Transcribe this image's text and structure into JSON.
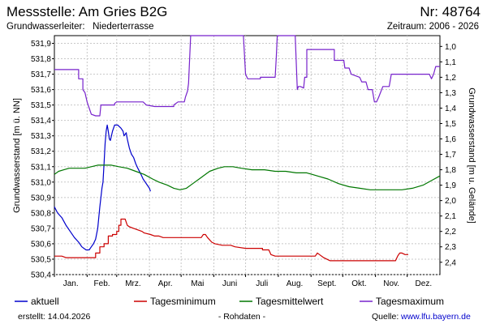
{
  "header": {
    "title": "Messstelle: Am Gries B2G",
    "nr": "Nr: 48764",
    "aquifer_label": "Grundwasserleiter:",
    "aquifer_value": "Niederterrasse",
    "period": "Zeitraum: 2006 - 2026"
  },
  "footer": {
    "created": "erstellt:  14.04.2026",
    "raw": "- Rohdaten -",
    "source_label": "Quelle:",
    "source_link": "www.lfu.bayern.de"
  },
  "chart_data": {
    "type": "line",
    "x_categories": [
      "Jan.",
      "Feb.",
      "Mrz.",
      "Apr.",
      "Mai",
      "Juni",
      "Juli",
      "Aug.",
      "Sept.",
      "Okt.",
      "Nov.",
      "Dez."
    ],
    "xlim": [
      1,
      366
    ],
    "ylabel": "Grundwasserstand [m ü. NN]",
    "ylim": [
      530.4,
      531.95
    ],
    "yticks": [
      "530,4",
      "530,5",
      "530,6",
      "530,7",
      "530,8",
      "530,9",
      "531,0",
      "531,1",
      "531,2",
      "531,3",
      "531,4",
      "531,5",
      "531,6",
      "531,7",
      "531,8",
      "531,9"
    ],
    "y2label": "Grundwasserstand [m u. Gelände]",
    "y2lim": [
      2.48,
      0.93
    ],
    "y2ticks": [
      "1,0",
      "1,1",
      "1,2",
      "1,3",
      "1,4",
      "1,5",
      "1,6",
      "1,7",
      "1,8",
      "1,9",
      "2,0",
      "2,1",
      "2,2",
      "2,3",
      "2,4"
    ],
    "grid": true,
    "legend_position": "bottom",
    "series": [
      {
        "name": "aktuell",
        "color": "#0000cc",
        "points": [
          [
            1,
            530.84
          ],
          [
            4,
            530.8
          ],
          [
            8,
            530.77
          ],
          [
            12,
            530.72
          ],
          [
            16,
            530.68
          ],
          [
            20,
            530.64
          ],
          [
            24,
            530.61
          ],
          [
            27,
            530.58
          ],
          [
            29,
            530.57
          ],
          [
            31,
            530.56
          ],
          [
            34,
            530.56
          ],
          [
            36,
            530.58
          ],
          [
            38,
            530.6
          ],
          [
            40,
            530.63
          ],
          [
            42,
            530.7
          ],
          [
            44,
            530.84
          ],
          [
            46,
            530.96
          ],
          [
            47,
            531.0
          ],
          [
            48,
            531.12
          ],
          [
            49,
            531.25
          ],
          [
            50,
            531.33
          ],
          [
            51,
            531.37
          ],
          [
            52,
            531.33
          ],
          [
            53,
            531.28
          ],
          [
            54,
            531.27
          ],
          [
            56,
            531.33
          ],
          [
            58,
            531.37
          ],
          [
            61,
            531.37
          ],
          [
            64,
            531.35
          ],
          [
            66,
            531.33
          ],
          [
            67,
            531.3
          ],
          [
            69,
            531.32
          ],
          [
            70,
            531.28
          ],
          [
            72,
            531.22
          ],
          [
            74,
            531.18
          ],
          [
            76,
            531.16
          ],
          [
            78,
            531.12
          ],
          [
            80,
            531.09
          ],
          [
            83,
            531.05
          ],
          [
            85,
            531.02
          ],
          [
            87,
            531.0
          ],
          [
            89,
            530.98
          ],
          [
            91,
            530.96
          ],
          [
            92,
            530.94
          ]
        ]
      },
      {
        "name": "Tagesminimum",
        "color": "#cc0000",
        "points": [
          [
            1,
            530.52
          ],
          [
            8,
            530.52
          ],
          [
            12,
            530.51
          ],
          [
            40,
            530.51
          ],
          [
            40,
            530.54
          ],
          [
            44,
            530.54
          ],
          [
            44,
            530.58
          ],
          [
            48,
            530.58
          ],
          [
            48,
            530.6
          ],
          [
            52,
            530.6
          ],
          [
            52,
            530.65
          ],
          [
            56,
            530.65
          ],
          [
            56,
            530.66
          ],
          [
            60,
            530.66
          ],
          [
            60,
            530.68
          ],
          [
            62,
            530.68
          ],
          [
            62,
            530.72
          ],
          [
            64,
            530.72
          ],
          [
            64,
            530.76
          ],
          [
            68,
            530.76
          ],
          [
            70,
            530.72
          ],
          [
            72,
            530.71
          ],
          [
            76,
            530.7
          ],
          [
            80,
            530.69
          ],
          [
            84,
            530.68
          ],
          [
            86,
            530.67
          ],
          [
            92,
            530.66
          ],
          [
            96,
            530.65
          ],
          [
            100,
            530.65
          ],
          [
            104,
            530.64
          ],
          [
            106,
            530.64
          ],
          [
            110,
            530.64
          ],
          [
            140,
            530.64
          ],
          [
            142,
            530.66
          ],
          [
            144,
            530.66
          ],
          [
            146,
            530.64
          ],
          [
            150,
            530.61
          ],
          [
            153,
            530.6
          ],
          [
            160,
            530.59
          ],
          [
            168,
            530.59
          ],
          [
            172,
            530.58
          ],
          [
            182,
            530.57
          ],
          [
            198,
            530.57
          ],
          [
            198,
            530.56
          ],
          [
            204,
            530.56
          ],
          [
            206,
            530.53
          ],
          [
            210,
            530.52
          ],
          [
            240,
            530.52
          ],
          [
            248,
            530.52
          ],
          [
            250,
            530.54
          ],
          [
            252,
            530.53
          ],
          [
            256,
            530.51
          ],
          [
            262,
            530.49
          ],
          [
            266,
            530.49
          ],
          [
            324,
            530.49
          ],
          [
            326,
            530.52
          ],
          [
            328,
            530.54
          ],
          [
            330,
            530.54
          ],
          [
            333,
            530.53
          ],
          [
            336,
            530.53
          ]
        ]
      },
      {
        "name": "Tagesmittelwert",
        "color": "#007700",
        "points": [
          [
            1,
            531.05
          ],
          [
            5,
            531.07
          ],
          [
            10,
            531.08
          ],
          [
            15,
            531.09
          ],
          [
            24,
            531.09
          ],
          [
            30,
            531.09
          ],
          [
            36,
            531.1
          ],
          [
            42,
            531.11
          ],
          [
            48,
            531.11
          ],
          [
            55,
            531.11
          ],
          [
            62,
            531.1
          ],
          [
            70,
            531.09
          ],
          [
            78,
            531.07
          ],
          [
            86,
            531.05
          ],
          [
            94,
            531.02
          ],
          [
            100,
            531.0
          ],
          [
            108,
            530.98
          ],
          [
            114,
            530.96
          ],
          [
            120,
            530.95
          ],
          [
            126,
            530.96
          ],
          [
            132,
            530.99
          ],
          [
            140,
            531.03
          ],
          [
            148,
            531.07
          ],
          [
            156,
            531.09
          ],
          [
            162,
            531.1
          ],
          [
            170,
            531.1
          ],
          [
            178,
            531.09
          ],
          [
            188,
            531.08
          ],
          [
            200,
            531.08
          ],
          [
            210,
            531.07
          ],
          [
            220,
            531.07
          ],
          [
            230,
            531.06
          ],
          [
            240,
            531.06
          ],
          [
            250,
            531.04
          ],
          [
            260,
            531.02
          ],
          [
            270,
            530.99
          ],
          [
            280,
            530.97
          ],
          [
            290,
            530.96
          ],
          [
            300,
            530.95
          ],
          [
            310,
            530.95
          ],
          [
            320,
            530.95
          ],
          [
            330,
            530.95
          ],
          [
            340,
            530.96
          ],
          [
            350,
            530.98
          ],
          [
            358,
            531.01
          ],
          [
            366,
            531.04
          ]
        ]
      },
      {
        "name": "Tagesmaximum",
        "color": "#7722cc",
        "points": [
          [
            1,
            531.73
          ],
          [
            24,
            531.73
          ],
          [
            24,
            531.67
          ],
          [
            28,
            531.67
          ],
          [
            28,
            531.6
          ],
          [
            30,
            531.58
          ],
          [
            32,
            531.52
          ],
          [
            34,
            531.48
          ],
          [
            36,
            531.44
          ],
          [
            40,
            531.43
          ],
          [
            44,
            531.43
          ],
          [
            45,
            531.5
          ],
          [
            58,
            531.5
          ],
          [
            58,
            531.51
          ],
          [
            60,
            531.52
          ],
          [
            85,
            531.52
          ],
          [
            88,
            531.5
          ],
          [
            96,
            531.49
          ],
          [
            114,
            531.49
          ],
          [
            114,
            531.5
          ],
          [
            118,
            531.52
          ],
          [
            124,
            531.52
          ],
          [
            125,
            531.55
          ],
          [
            127,
            531.59
          ],
          [
            128,
            531.64
          ],
          [
            130,
            531.95
          ],
          [
            180,
            531.95
          ],
          [
            182,
            531.7
          ],
          [
            184,
            531.67
          ],
          [
            196,
            531.67
          ],
          [
            196,
            531.68
          ],
          [
            210,
            531.68
          ],
          [
            211,
            531.8
          ],
          [
            212,
            531.95
          ],
          [
            229,
            531.95
          ],
          [
            231,
            531.6
          ],
          [
            232,
            531.62
          ],
          [
            234,
            531.62
          ],
          [
            237,
            531.61
          ],
          [
            238,
            531.68
          ],
          [
            240,
            531.68
          ],
          [
            240,
            531.86
          ],
          [
            260,
            531.86
          ],
          [
            266,
            531.86
          ],
          [
            266,
            531.79
          ],
          [
            270,
            531.79
          ],
          [
            275,
            531.79
          ],
          [
            276,
            531.74
          ],
          [
            280,
            531.74
          ],
          [
            282,
            531.7
          ],
          [
            290,
            531.68
          ],
          [
            292,
            531.65
          ],
          [
            296,
            531.65
          ],
          [
            298,
            531.6
          ],
          [
            302,
            531.6
          ],
          [
            304,
            531.52
          ],
          [
            306,
            531.52
          ],
          [
            308,
            531.55
          ],
          [
            312,
            531.62
          ],
          [
            318,
            531.62
          ],
          [
            320,
            531.7
          ],
          [
            356,
            531.7
          ],
          [
            358,
            531.67
          ],
          [
            360,
            531.7
          ],
          [
            362,
            531.75
          ],
          [
            366,
            531.75
          ]
        ]
      }
    ]
  }
}
